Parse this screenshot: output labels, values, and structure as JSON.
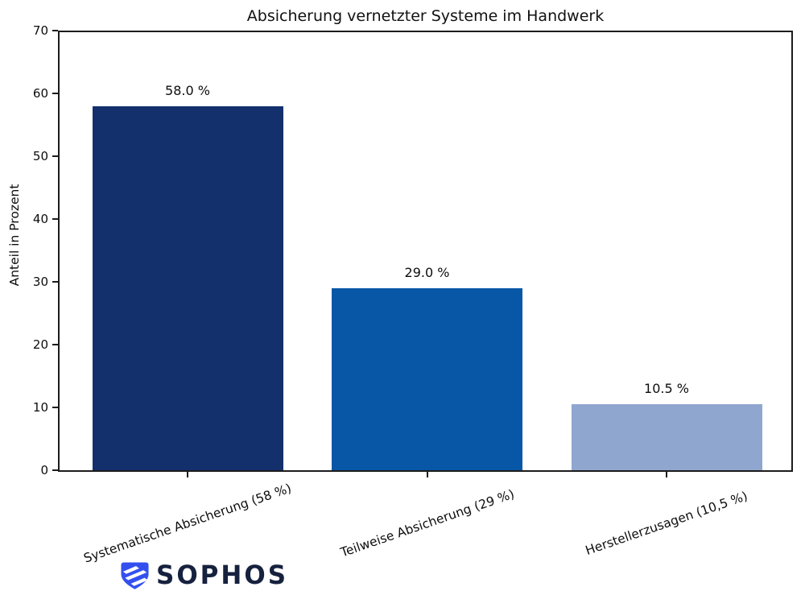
{
  "chart_data": {
    "type": "bar",
    "title": "Absicherung vernetzter Systeme im Handwerk",
    "categories": [
      "Systematische Absicherung (58 %)",
      "Teilweise Absicherung (29 %)",
      "Herstellerzusagen (10,5 %)"
    ],
    "values": [
      58.0,
      29.0,
      10.5
    ],
    "value_labels": [
      "58.0 %",
      "29.0 %",
      "10.5 %"
    ],
    "bar_colors": [
      "#13306c",
      "#0857a6",
      "#8fa6cf"
    ],
    "xlabel": "",
    "ylabel": "Anteil in Prozent",
    "ylim": [
      0,
      70
    ],
    "yticks": [
      0,
      10,
      20,
      30,
      40,
      50,
      60,
      70
    ],
    "grid": false,
    "legend": "none"
  },
  "branding": {
    "logo_text": "SOPHOS",
    "shield_icon": "sophos-shield-icon",
    "shield_color": "#3350ef",
    "wordmark_color": "#16213e"
  }
}
